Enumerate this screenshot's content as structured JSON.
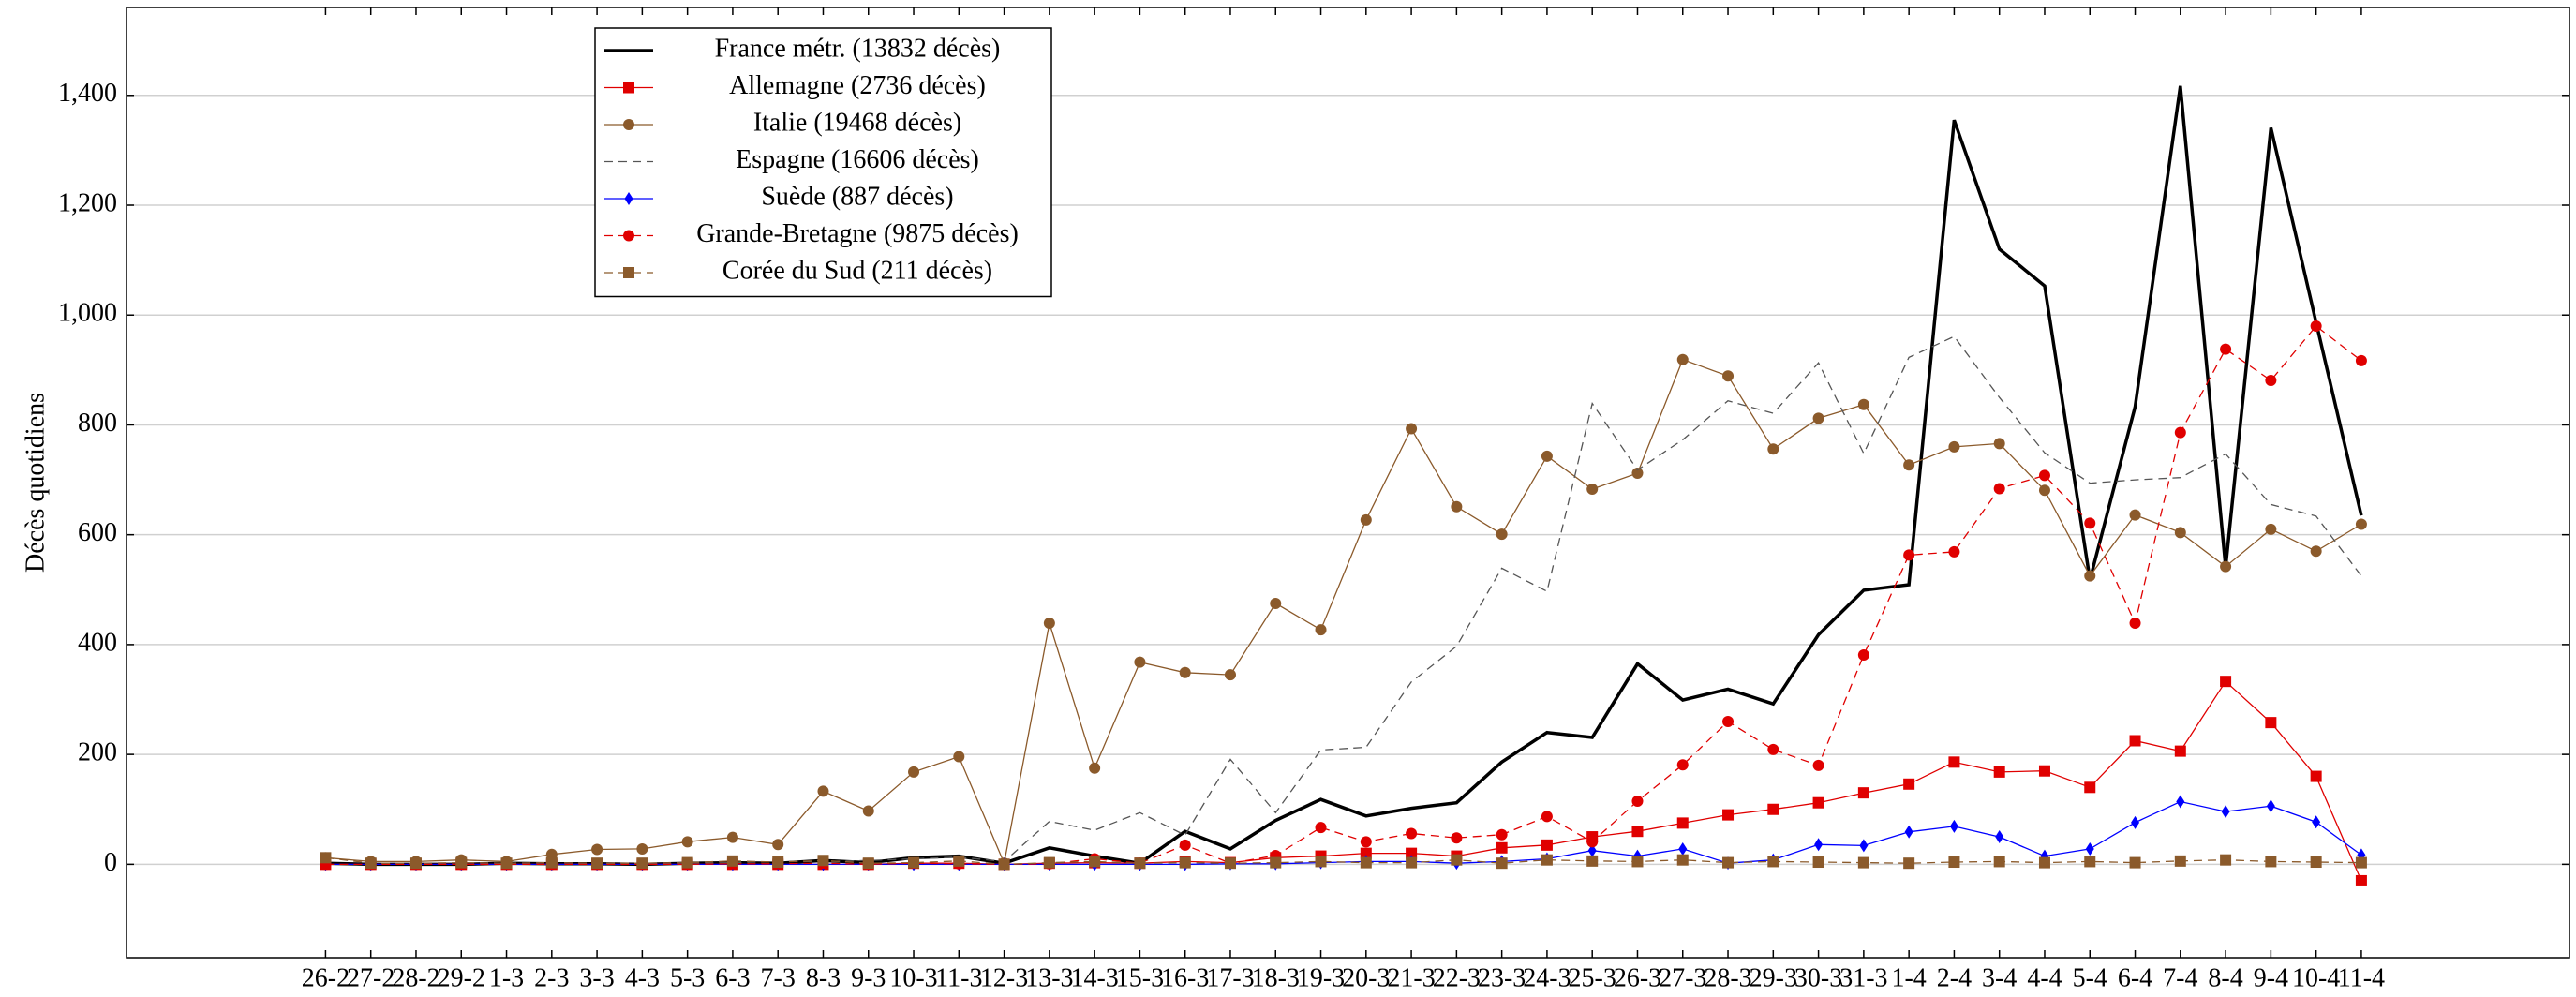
{
  "chart_data": {
    "type": "line",
    "ylabel": "Décès quotidiens",
    "categories": [
      "26-2",
      "27-2",
      "28-2",
      "29-2",
      "1-3",
      "2-3",
      "3-3",
      "4-3",
      "5-3",
      "6-3",
      "7-3",
      "8-3",
      "9-3",
      "10-3",
      "11-3",
      "12-3",
      "13-3",
      "14-3",
      "15-3",
      "16-3",
      "17-3",
      "18-3",
      "19-3",
      "20-3",
      "21-3",
      "22-3",
      "23-3",
      "24-3",
      "25-3",
      "26-3",
      "27-3",
      "28-3",
      "29-3",
      "30-3",
      "31-3",
      "1-4",
      "2-4",
      "3-4",
      "4-4",
      "5-4",
      "6-4",
      "7-4",
      "8-4",
      "9-4",
      "10-4",
      "11-4"
    ],
    "ylim": [
      -170,
      1560
    ],
    "yticks": [
      0,
      200,
      400,
      600,
      800,
      {
        "value": 1000,
        "label": "1,000"
      },
      {
        "value": 1200,
        "label": "1,200"
      },
      {
        "value": 1400,
        "label": "1,400"
      }
    ],
    "grid": true,
    "legend": "upper left",
    "series": [
      {
        "name": "France métr. (13832 décès)",
        "color": "#000000",
        "marker": "none",
        "dashed": false,
        "values": [
          2,
          0,
          0,
          0,
          2,
          1,
          1,
          0,
          2,
          3,
          2,
          7,
          3,
          12,
          15,
          2,
          30,
          15,
          2,
          60,
          28,
          80,
          118,
          88,
          102,
          112,
          186,
          240,
          231,
          365,
          299,
          319,
          292,
          418,
          499,
          509,
          1355,
          1120,
          1053,
          518,
          833,
          1417,
          541,
          1341,
          987,
          635
        ]
      },
      {
        "name": "Allemagne (2736 décès)",
        "color": "#e00000",
        "marker": "square",
        "dashed": false,
        "values": [
          0,
          0,
          0,
          0,
          0,
          0,
          0,
          0,
          0,
          0,
          0,
          0,
          0,
          2,
          2,
          0,
          2,
          3,
          2,
          5,
          3,
          12,
          15,
          20,
          20,
          15,
          30,
          35,
          50,
          60,
          75,
          90,
          100,
          112,
          130,
          146,
          186,
          168,
          170,
          140,
          225,
          206,
          333,
          258,
          160,
          -30
        ]
      },
      {
        "name": "Italie (19468 décès)",
        "color": "#8b5a2b",
        "marker": "circle",
        "dashed": false,
        "values": [
          12,
          5,
          5,
          8,
          5,
          18,
          27,
          28,
          41,
          49,
          36,
          133,
          97,
          168,
          196,
          2,
          439,
          175,
          368,
          349,
          345,
          475,
          427,
          627,
          793,
          651,
          601,
          743,
          683,
          712,
          919,
          889,
          756,
          812,
          837,
          727,
          760,
          766,
          681,
          525,
          636,
          604,
          542,
          610,
          570,
          619
        ]
      },
      {
        "name": "Espagne (16606 décès)",
        "color": "#555555",
        "marker": "none",
        "dashed": true,
        "values": [
          0,
          0,
          0,
          0,
          0,
          0,
          0,
          1,
          2,
          3,
          5,
          5,
          7,
          10,
          13,
          5,
          78,
          62,
          94,
          53,
          191,
          94,
          208,
          213,
          332,
          397,
          539,
          497,
          839,
          718,
          773,
          844,
          821,
          913,
          748,
          923,
          961,
          850,
          749,
          694,
          700,
          704,
          747,
          655,
          634,
          525
        ]
      },
      {
        "name": "Suède (887 décès)",
        "color": "#0000ff",
        "marker": "diamond",
        "dashed": false,
        "values": [
          0,
          0,
          0,
          0,
          0,
          0,
          0,
          0,
          0,
          0,
          0,
          0,
          0,
          0,
          0,
          0,
          0,
          0,
          0,
          0,
          1,
          1,
          3,
          5,
          5,
          2,
          5,
          10,
          25,
          15,
          28,
          2,
          8,
          36,
          34,
          59,
          69,
          50,
          15,
          28,
          76,
          114,
          96,
          106,
          77,
          17
        ]
      },
      {
        "name": "Grande-Bretagne (9875 décès)",
        "color": "#e00000",
        "marker": "circle",
        "dashed": true,
        "values": [
          0,
          0,
          0,
          0,
          0,
          0,
          0,
          0,
          0,
          1,
          1,
          2,
          0,
          2,
          1,
          0,
          1,
          10,
          2,
          35,
          2,
          16,
          67,
          41,
          56,
          48,
          54,
          87,
          41,
          115,
          181,
          260,
          209,
          180,
          381,
          563,
          569,
          684,
          708,
          621,
          439,
          786,
          938,
          881,
          980,
          917
        ]
      },
      {
        "name": "Corée du Sud (211 décès)",
        "color": "#8b5a2b",
        "marker": "square",
        "dashed": true,
        "values": [
          12,
          2,
          2,
          3,
          2,
          3,
          2,
          2,
          3,
          6,
          4,
          7,
          2,
          3,
          6,
          0,
          3,
          5,
          2,
          3,
          2,
          3,
          5,
          3,
          3,
          8,
          2,
          8,
          6,
          5,
          8,
          3,
          5,
          4,
          3,
          2,
          4,
          5,
          3,
          5,
          3,
          6,
          8,
          5,
          4,
          3
        ]
      }
    ]
  }
}
